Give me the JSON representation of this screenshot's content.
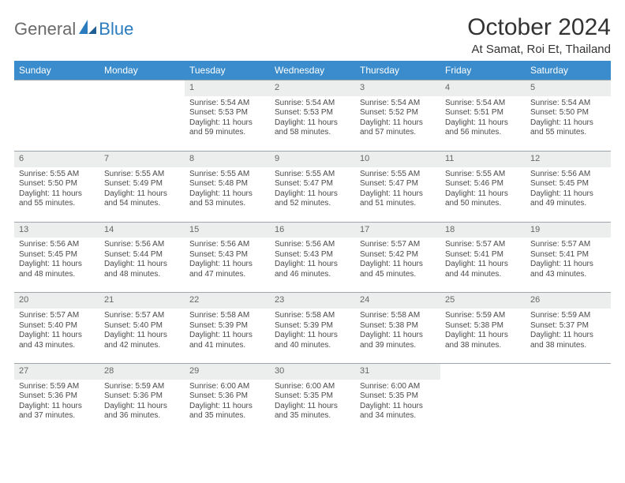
{
  "brand": {
    "word1": "General",
    "word2": "Blue"
  },
  "title": "October 2024",
  "location": "At Samat, Roi Et, Thailand",
  "colors": {
    "header_bg": "#3b8ccc",
    "header_fg": "#ffffff",
    "daynum_bg": "#eceded",
    "border": "#9fa7ad",
    "logo_gray": "#6a6a6a",
    "logo_blue": "#2b7bbf"
  },
  "weekdays": [
    "Sunday",
    "Monday",
    "Tuesday",
    "Wednesday",
    "Thursday",
    "Friday",
    "Saturday"
  ],
  "weeks": [
    [
      null,
      null,
      {
        "n": "1",
        "sr": "5:54 AM",
        "ss": "5:53 PM",
        "d1": "Daylight: 11 hours",
        "d2": "and 59 minutes."
      },
      {
        "n": "2",
        "sr": "5:54 AM",
        "ss": "5:53 PM",
        "d1": "Daylight: 11 hours",
        "d2": "and 58 minutes."
      },
      {
        "n": "3",
        "sr": "5:54 AM",
        "ss": "5:52 PM",
        "d1": "Daylight: 11 hours",
        "d2": "and 57 minutes."
      },
      {
        "n": "4",
        "sr": "5:54 AM",
        "ss": "5:51 PM",
        "d1": "Daylight: 11 hours",
        "d2": "and 56 minutes."
      },
      {
        "n": "5",
        "sr": "5:54 AM",
        "ss": "5:50 PM",
        "d1": "Daylight: 11 hours",
        "d2": "and 55 minutes."
      }
    ],
    [
      {
        "n": "6",
        "sr": "5:55 AM",
        "ss": "5:50 PM",
        "d1": "Daylight: 11 hours",
        "d2": "and 55 minutes."
      },
      {
        "n": "7",
        "sr": "5:55 AM",
        "ss": "5:49 PM",
        "d1": "Daylight: 11 hours",
        "d2": "and 54 minutes."
      },
      {
        "n": "8",
        "sr": "5:55 AM",
        "ss": "5:48 PM",
        "d1": "Daylight: 11 hours",
        "d2": "and 53 minutes."
      },
      {
        "n": "9",
        "sr": "5:55 AM",
        "ss": "5:47 PM",
        "d1": "Daylight: 11 hours",
        "d2": "and 52 minutes."
      },
      {
        "n": "10",
        "sr": "5:55 AM",
        "ss": "5:47 PM",
        "d1": "Daylight: 11 hours",
        "d2": "and 51 minutes."
      },
      {
        "n": "11",
        "sr": "5:55 AM",
        "ss": "5:46 PM",
        "d1": "Daylight: 11 hours",
        "d2": "and 50 minutes."
      },
      {
        "n": "12",
        "sr": "5:56 AM",
        "ss": "5:45 PM",
        "d1": "Daylight: 11 hours",
        "d2": "and 49 minutes."
      }
    ],
    [
      {
        "n": "13",
        "sr": "5:56 AM",
        "ss": "5:45 PM",
        "d1": "Daylight: 11 hours",
        "d2": "and 48 minutes."
      },
      {
        "n": "14",
        "sr": "5:56 AM",
        "ss": "5:44 PM",
        "d1": "Daylight: 11 hours",
        "d2": "and 48 minutes."
      },
      {
        "n": "15",
        "sr": "5:56 AM",
        "ss": "5:43 PM",
        "d1": "Daylight: 11 hours",
        "d2": "and 47 minutes."
      },
      {
        "n": "16",
        "sr": "5:56 AM",
        "ss": "5:43 PM",
        "d1": "Daylight: 11 hours",
        "d2": "and 46 minutes."
      },
      {
        "n": "17",
        "sr": "5:57 AM",
        "ss": "5:42 PM",
        "d1": "Daylight: 11 hours",
        "d2": "and 45 minutes."
      },
      {
        "n": "18",
        "sr": "5:57 AM",
        "ss": "5:41 PM",
        "d1": "Daylight: 11 hours",
        "d2": "and 44 minutes."
      },
      {
        "n": "19",
        "sr": "5:57 AM",
        "ss": "5:41 PM",
        "d1": "Daylight: 11 hours",
        "d2": "and 43 minutes."
      }
    ],
    [
      {
        "n": "20",
        "sr": "5:57 AM",
        "ss": "5:40 PM",
        "d1": "Daylight: 11 hours",
        "d2": "and 43 minutes."
      },
      {
        "n": "21",
        "sr": "5:57 AM",
        "ss": "5:40 PM",
        "d1": "Daylight: 11 hours",
        "d2": "and 42 minutes."
      },
      {
        "n": "22",
        "sr": "5:58 AM",
        "ss": "5:39 PM",
        "d1": "Daylight: 11 hours",
        "d2": "and 41 minutes."
      },
      {
        "n": "23",
        "sr": "5:58 AM",
        "ss": "5:39 PM",
        "d1": "Daylight: 11 hours",
        "d2": "and 40 minutes."
      },
      {
        "n": "24",
        "sr": "5:58 AM",
        "ss": "5:38 PM",
        "d1": "Daylight: 11 hours",
        "d2": "and 39 minutes."
      },
      {
        "n": "25",
        "sr": "5:59 AM",
        "ss": "5:38 PM",
        "d1": "Daylight: 11 hours",
        "d2": "and 38 minutes."
      },
      {
        "n": "26",
        "sr": "5:59 AM",
        "ss": "5:37 PM",
        "d1": "Daylight: 11 hours",
        "d2": "and 38 minutes."
      }
    ],
    [
      {
        "n": "27",
        "sr": "5:59 AM",
        "ss": "5:36 PM",
        "d1": "Daylight: 11 hours",
        "d2": "and 37 minutes."
      },
      {
        "n": "28",
        "sr": "5:59 AM",
        "ss": "5:36 PM",
        "d1": "Daylight: 11 hours",
        "d2": "and 36 minutes."
      },
      {
        "n": "29",
        "sr": "6:00 AM",
        "ss": "5:36 PM",
        "d1": "Daylight: 11 hours",
        "d2": "and 35 minutes."
      },
      {
        "n": "30",
        "sr": "6:00 AM",
        "ss": "5:35 PM",
        "d1": "Daylight: 11 hours",
        "d2": "and 35 minutes."
      },
      {
        "n": "31",
        "sr": "6:00 AM",
        "ss": "5:35 PM",
        "d1": "Daylight: 11 hours",
        "d2": "and 34 minutes."
      },
      null,
      null
    ]
  ],
  "labels": {
    "sunrise": "Sunrise: ",
    "sunset": "Sunset: "
  }
}
